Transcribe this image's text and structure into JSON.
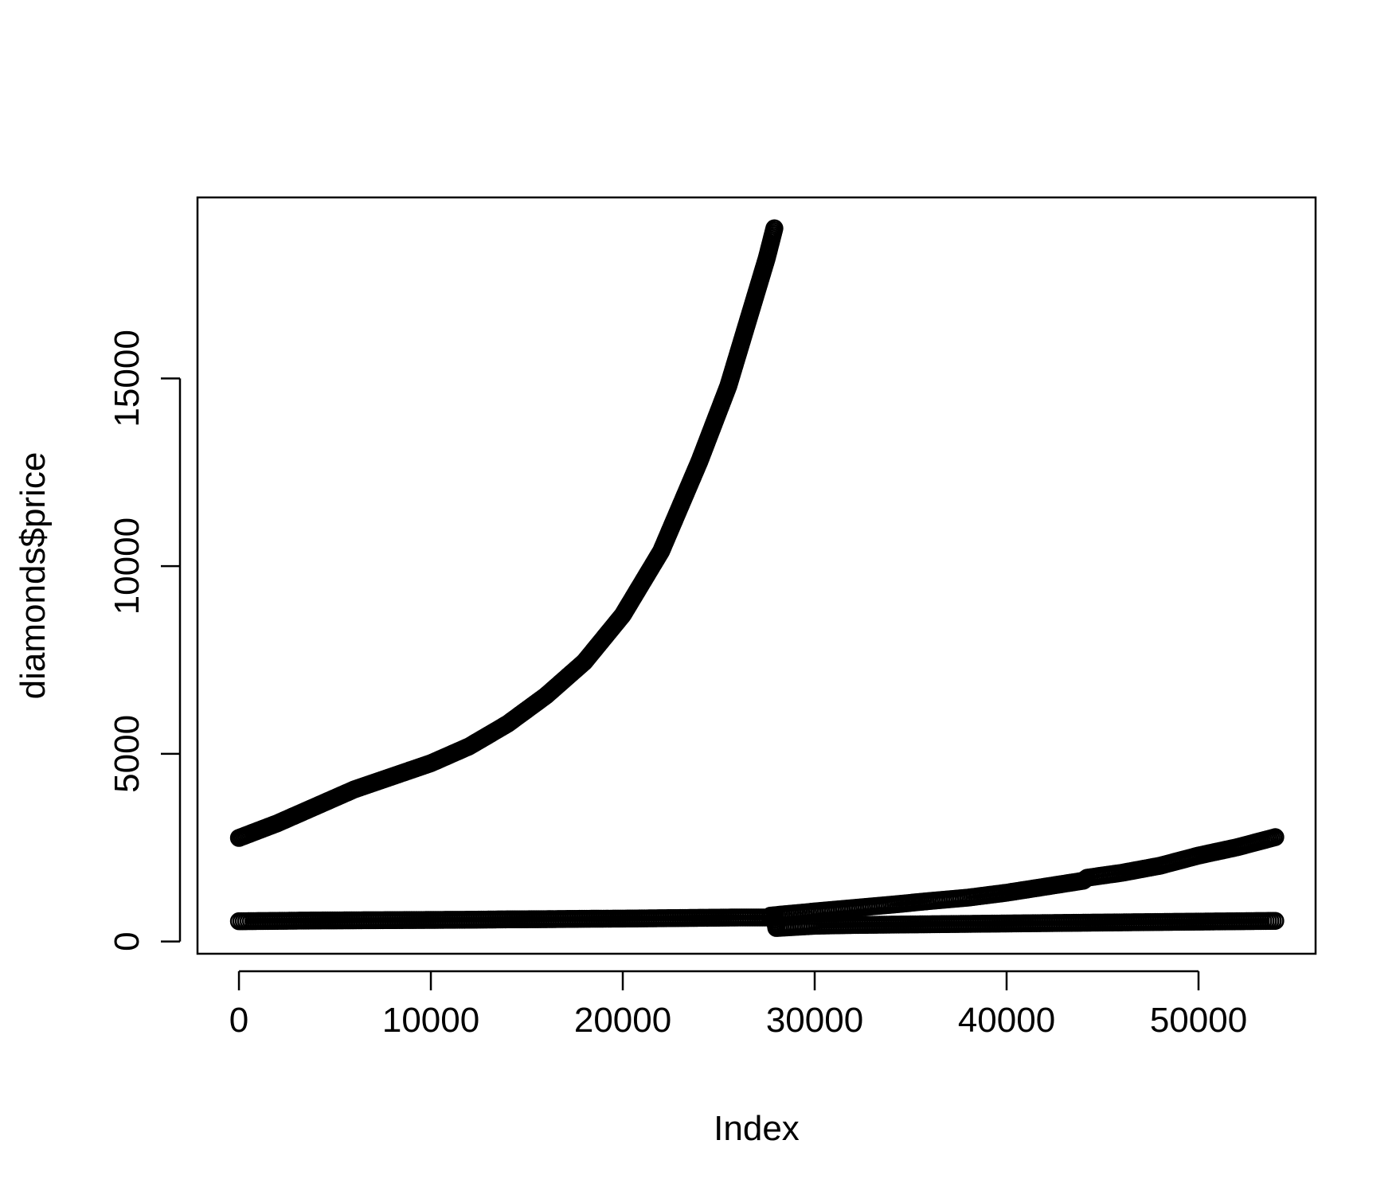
{
  "chart_data": {
    "type": "scatter",
    "title": "",
    "xlabel": "Index",
    "ylabel": "diamonds$price",
    "xlim": [
      -2160,
      56100
    ],
    "ylim": [
      -326,
      19823
    ],
    "x_ticks": [
      0,
      10000,
      20000,
      30000,
      40000,
      50000
    ],
    "x_tick_labels": [
      "0",
      "10000",
      "20000",
      "30000",
      "40000",
      "50000"
    ],
    "y_ticks": [
      0,
      5000,
      10000,
      15000
    ],
    "y_tick_labels": [
      "0",
      "5000",
      "10000",
      "15000"
    ],
    "grid": false,
    "legend": "none",
    "marker": "open-circle",
    "color": "#000000",
    "series": [
      {
        "x": [
          0,
          2000,
          4000,
          6000,
          8000,
          10000,
          12000,
          14000,
          16000,
          18000,
          20000,
          22000,
          24000,
          25500,
          26500,
          27500,
          27900
        ],
        "y": [
          2760,
          3150,
          3600,
          4050,
          4400,
          4750,
          5200,
          5800,
          6550,
          7450,
          8700,
          10400,
          12800,
          14800,
          16500,
          18200,
          19000
        ]
      },
      {
        "x": [
          27700,
          30000,
          32000,
          34000,
          36000,
          38000,
          40000,
          42000,
          44000,
          44200,
          46000,
          48000,
          50000,
          52000,
          54000
        ],
        "y": [
          690,
          800,
          890,
          980,
          1080,
          1170,
          1300,
          1460,
          1620,
          1700,
          1830,
          2020,
          2290,
          2510,
          2780
        ]
      },
      {
        "x": [
          0,
          2000,
          4000,
          6000,
          8000,
          10000,
          12000,
          14000,
          16000,
          18000,
          20000,
          22000,
          24000,
          26000,
          27900,
          28000,
          30000,
          32000,
          34000,
          36000,
          38000,
          40000,
          42000,
          44000,
          46000,
          48000,
          50000,
          52000,
          54000
        ],
        "y": [
          540,
          550,
          560,
          565,
          570,
          575,
          580,
          590,
          595,
          605,
          610,
          620,
          630,
          640,
          640,
          360,
          420,
          440,
          450,
          460,
          470,
          480,
          490,
          500,
          510,
          520,
          530,
          540,
          550
        ]
      }
    ]
  }
}
